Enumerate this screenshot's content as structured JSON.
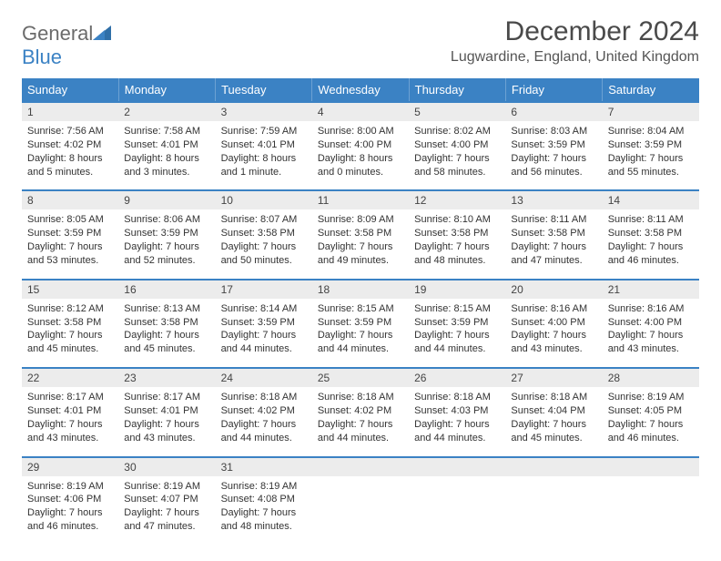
{
  "brand": {
    "name_a": "General",
    "name_b": "Blue"
  },
  "title": "December 2024",
  "location": "Lugwardine, England, United Kingdom",
  "colors": {
    "accent": "#3b82c4",
    "daynum_bg": "#ececec",
    "text": "#333333"
  },
  "dow": [
    "Sunday",
    "Monday",
    "Tuesday",
    "Wednesday",
    "Thursday",
    "Friday",
    "Saturday"
  ],
  "weeks": [
    [
      {
        "n": "1",
        "sr": "7:56 AM",
        "ss": "4:02 PM",
        "dl": "8 hours and 5 minutes."
      },
      {
        "n": "2",
        "sr": "7:58 AM",
        "ss": "4:01 PM",
        "dl": "8 hours and 3 minutes."
      },
      {
        "n": "3",
        "sr": "7:59 AM",
        "ss": "4:01 PM",
        "dl": "8 hours and 1 minute."
      },
      {
        "n": "4",
        "sr": "8:00 AM",
        "ss": "4:00 PM",
        "dl": "8 hours and 0 minutes."
      },
      {
        "n": "5",
        "sr": "8:02 AM",
        "ss": "4:00 PM",
        "dl": "7 hours and 58 minutes."
      },
      {
        "n": "6",
        "sr": "8:03 AM",
        "ss": "3:59 PM",
        "dl": "7 hours and 56 minutes."
      },
      {
        "n": "7",
        "sr": "8:04 AM",
        "ss": "3:59 PM",
        "dl": "7 hours and 55 minutes."
      }
    ],
    [
      {
        "n": "8",
        "sr": "8:05 AM",
        "ss": "3:59 PM",
        "dl": "7 hours and 53 minutes."
      },
      {
        "n": "9",
        "sr": "8:06 AM",
        "ss": "3:59 PM",
        "dl": "7 hours and 52 minutes."
      },
      {
        "n": "10",
        "sr": "8:07 AM",
        "ss": "3:58 PM",
        "dl": "7 hours and 50 minutes."
      },
      {
        "n": "11",
        "sr": "8:09 AM",
        "ss": "3:58 PM",
        "dl": "7 hours and 49 minutes."
      },
      {
        "n": "12",
        "sr": "8:10 AM",
        "ss": "3:58 PM",
        "dl": "7 hours and 48 minutes."
      },
      {
        "n": "13",
        "sr": "8:11 AM",
        "ss": "3:58 PM",
        "dl": "7 hours and 47 minutes."
      },
      {
        "n": "14",
        "sr": "8:11 AM",
        "ss": "3:58 PM",
        "dl": "7 hours and 46 minutes."
      }
    ],
    [
      {
        "n": "15",
        "sr": "8:12 AM",
        "ss": "3:58 PM",
        "dl": "7 hours and 45 minutes."
      },
      {
        "n": "16",
        "sr": "8:13 AM",
        "ss": "3:58 PM",
        "dl": "7 hours and 45 minutes."
      },
      {
        "n": "17",
        "sr": "8:14 AM",
        "ss": "3:59 PM",
        "dl": "7 hours and 44 minutes."
      },
      {
        "n": "18",
        "sr": "8:15 AM",
        "ss": "3:59 PM",
        "dl": "7 hours and 44 minutes."
      },
      {
        "n": "19",
        "sr": "8:15 AM",
        "ss": "3:59 PM",
        "dl": "7 hours and 44 minutes."
      },
      {
        "n": "20",
        "sr": "8:16 AM",
        "ss": "4:00 PM",
        "dl": "7 hours and 43 minutes."
      },
      {
        "n": "21",
        "sr": "8:16 AM",
        "ss": "4:00 PM",
        "dl": "7 hours and 43 minutes."
      }
    ],
    [
      {
        "n": "22",
        "sr": "8:17 AM",
        "ss": "4:01 PM",
        "dl": "7 hours and 43 minutes."
      },
      {
        "n": "23",
        "sr": "8:17 AM",
        "ss": "4:01 PM",
        "dl": "7 hours and 43 minutes."
      },
      {
        "n": "24",
        "sr": "8:18 AM",
        "ss": "4:02 PM",
        "dl": "7 hours and 44 minutes."
      },
      {
        "n": "25",
        "sr": "8:18 AM",
        "ss": "4:02 PM",
        "dl": "7 hours and 44 minutes."
      },
      {
        "n": "26",
        "sr": "8:18 AM",
        "ss": "4:03 PM",
        "dl": "7 hours and 44 minutes."
      },
      {
        "n": "27",
        "sr": "8:18 AM",
        "ss": "4:04 PM",
        "dl": "7 hours and 45 minutes."
      },
      {
        "n": "28",
        "sr": "8:19 AM",
        "ss": "4:05 PM",
        "dl": "7 hours and 46 minutes."
      }
    ],
    [
      {
        "n": "29",
        "sr": "8:19 AM",
        "ss": "4:06 PM",
        "dl": "7 hours and 46 minutes."
      },
      {
        "n": "30",
        "sr": "8:19 AM",
        "ss": "4:07 PM",
        "dl": "7 hours and 47 minutes."
      },
      {
        "n": "31",
        "sr": "8:19 AM",
        "ss": "4:08 PM",
        "dl": "7 hours and 48 minutes."
      },
      null,
      null,
      null,
      null
    ]
  ],
  "labels": {
    "sunrise": "Sunrise:",
    "sunset": "Sunset:",
    "daylight": "Daylight:"
  }
}
